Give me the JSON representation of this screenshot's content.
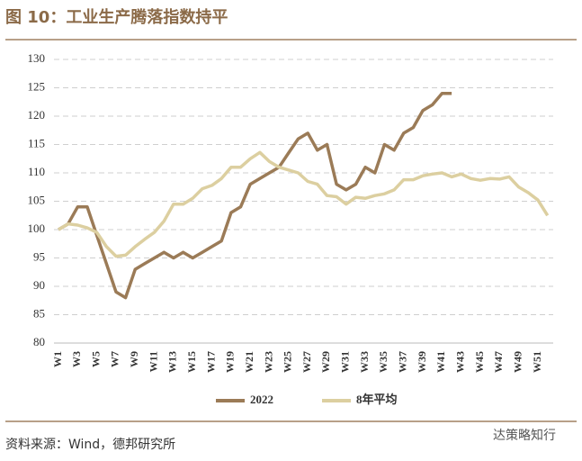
{
  "chart_data": {
    "type": "line",
    "title": "图 10：工业生产腾落指数持平",
    "source": "资料来源：Wind，德邦研究所",
    "watermark": "达策略知行",
    "categories": [
      "W1",
      null,
      "W3",
      null,
      "W5",
      null,
      "W7",
      null,
      "W9",
      null,
      "W11",
      null,
      "W13",
      null,
      "W15",
      null,
      "W17",
      null,
      "W19",
      null,
      "W21",
      null,
      "W23",
      null,
      "W25",
      null,
      "W27",
      null,
      "W29",
      null,
      "W31",
      null,
      "W33",
      null,
      "W35",
      null,
      "W37",
      null,
      "W39",
      null,
      "W41",
      null,
      "W43",
      null,
      "W45",
      null,
      "W47",
      null,
      "W49",
      null,
      "W51",
      null
    ],
    "series": [
      {
        "name": "2022",
        "color": "#9b7b57",
        "values": [
          100,
          101,
          104,
          104,
          99,
          94,
          89,
          88,
          93,
          94,
          95,
          96,
          95,
          96,
          95,
          96,
          97,
          98,
          103,
          104,
          108,
          109,
          110,
          111,
          113.5,
          116,
          117,
          114,
          115,
          108,
          107,
          108,
          111,
          110,
          115,
          114,
          117,
          118,
          121,
          122,
          124,
          124,
          null,
          null,
          null,
          null,
          null,
          null,
          null,
          null,
          null,
          null
        ]
      },
      {
        "name": "8年平均",
        "color": "#dccfa0",
        "values": [
          100,
          101,
          100.8,
          100.3,
          99.5,
          97,
          95.3,
          95.5,
          97,
          98.3,
          99.5,
          101.5,
          104.5,
          104.5,
          105.5,
          107.2,
          107.8,
          109,
          111,
          111,
          112.5,
          113.6,
          112,
          111,
          110.5,
          110,
          108.5,
          108,
          106,
          105.8,
          104.5,
          105.7,
          105.5,
          106,
          106.3,
          107,
          108.8,
          108.8,
          109.5,
          109.8,
          110,
          109.3,
          109.8,
          109,
          108.7,
          109,
          108.9,
          109.3,
          107.5,
          106.5,
          105.2,
          102.5
        ]
      }
    ],
    "ylim": [
      80,
      130
    ],
    "yticks": [
      80,
      85,
      90,
      95,
      100,
      105,
      110,
      115,
      120,
      125,
      130
    ],
    "grid": true
  }
}
